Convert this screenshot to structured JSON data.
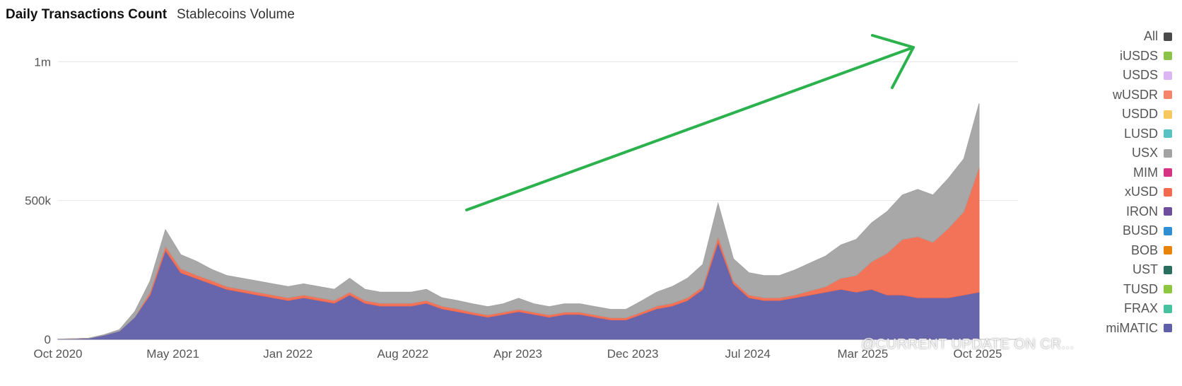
{
  "tabs": [
    {
      "label": "Daily Transactions Count",
      "active": true
    },
    {
      "label": "Stablecoins Volume",
      "active": false
    }
  ],
  "legend": [
    {
      "label": "All",
      "color": "#4a4a4a"
    },
    {
      "label": "iUSDS",
      "color": "#8bc34a"
    },
    {
      "label": "USDS",
      "color": "#dcb6f2"
    },
    {
      "label": "wUSDR",
      "color": "#f4846a"
    },
    {
      "label": "USDD",
      "color": "#f6c85f"
    },
    {
      "label": "LUSD",
      "color": "#59c3c3"
    },
    {
      "label": "USX",
      "color": "#a3a3a3"
    },
    {
      "label": "MIM",
      "color": "#d63384"
    },
    {
      "label": "xUSD",
      "color": "#f26b4f"
    },
    {
      "label": "IRON",
      "color": "#6f4e9c"
    },
    {
      "label": "BUSD",
      "color": "#2f8fd5"
    },
    {
      "label": "BOB",
      "color": "#e8830c"
    },
    {
      "label": "UST",
      "color": "#2a6e5f"
    },
    {
      "label": "TUSD",
      "color": "#8dc63f"
    },
    {
      "label": "FRAX",
      "color": "#48c1a0"
    },
    {
      "label": "miMATIC",
      "color": "#5f5ea8"
    }
  ],
  "watermark": "@CURRENT UPDATE ON CR...",
  "chart_data": {
    "type": "area",
    "stacked": true,
    "title": "Daily Transactions Count",
    "xlabel": "",
    "ylabel": "",
    "ylim": [
      0,
      1100000
    ],
    "y_ticks": [
      {
        "value": 0,
        "label": "0"
      },
      {
        "value": 500000,
        "label": "500k"
      },
      {
        "value": 1000000,
        "label": "1m"
      }
    ],
    "x_ticks": [
      "Oct 2020",
      "May 2021",
      "Jan 2022",
      "Aug 2022",
      "Apr 2023",
      "Dec 2023",
      "Jul 2024",
      "Mar 2025",
      "Oct 2025"
    ],
    "x": [
      "Oct 2020",
      "Nov 2020",
      "Dec 2020",
      "Jan 2021",
      "Feb 2021",
      "Mar 2021",
      "Apr 2021",
      "May 2021",
      "Jun 2021",
      "Jul 2021",
      "Aug 2021",
      "Sep 2021",
      "Oct 2021",
      "Nov 2021",
      "Dec 2021",
      "Jan 2022",
      "Feb 2022",
      "Mar 2022",
      "Apr 2022",
      "May 2022",
      "Jun 2022",
      "Jul 2022",
      "Aug 2022",
      "Sep 2022",
      "Oct 2022",
      "Nov 2022",
      "Dec 2022",
      "Jan 2023",
      "Feb 2023",
      "Mar 2023",
      "Apr 2023",
      "May 2023",
      "Jun 2023",
      "Jul 2023",
      "Aug 2023",
      "Sep 2023",
      "Oct 2023",
      "Nov 2023",
      "Dec 2023",
      "Jan 2024",
      "Feb 2024",
      "Mar 2024",
      "Apr 2024",
      "May 2024",
      "Jun 2024",
      "Jul 2024",
      "Aug 2024",
      "Sep 2024",
      "Oct 2024",
      "Nov 2024",
      "Dec 2024",
      "Jan 2025",
      "Feb 2025",
      "Mar 2025",
      "Apr 2025",
      "May 2025",
      "Jun 2025",
      "Jul 2025",
      "Aug 2025",
      "Sep 2025",
      "Oct 2025"
    ],
    "series": [
      {
        "name": "miMATIC",
        "color": "#5f5ea8",
        "values": [
          1000,
          2000,
          4000,
          15000,
          30000,
          80000,
          160000,
          320000,
          240000,
          220000,
          200000,
          180000,
          170000,
          160000,
          150000,
          140000,
          150000,
          140000,
          130000,
          160000,
          130000,
          120000,
          120000,
          120000,
          130000,
          110000,
          100000,
          90000,
          80000,
          90000,
          100000,
          90000,
          80000,
          90000,
          90000,
          80000,
          70000,
          70000,
          90000,
          110000,
          120000,
          140000,
          180000,
          350000,
          200000,
          150000,
          140000,
          140000,
          150000,
          160000,
          170000,
          180000,
          170000,
          180000,
          160000,
          160000,
          150000,
          150000,
          150000,
          160000,
          170000
        ]
      },
      {
        "name": "xUSD",
        "color": "#f26b4f",
        "values": [
          0,
          0,
          0,
          0,
          0,
          0,
          10000,
          15000,
          15000,
          12000,
          12000,
          10000,
          10000,
          10000,
          10000,
          10000,
          10000,
          10000,
          10000,
          10000,
          10000,
          10000,
          10000,
          10000,
          10000,
          10000,
          10000,
          8000,
          8000,
          8000,
          8000,
          8000,
          8000,
          8000,
          8000,
          8000,
          8000,
          8000,
          8000,
          10000,
          10000,
          10000,
          10000,
          20000,
          10000,
          10000,
          10000,
          10000,
          10000,
          15000,
          20000,
          40000,
          60000,
          100000,
          150000,
          200000,
          220000,
          200000,
          250000,
          300000,
          450000
        ]
      },
      {
        "name": "USX",
        "color": "#a3a3a3",
        "values": [
          0,
          0,
          0,
          2000,
          5000,
          20000,
          40000,
          60000,
          50000,
          50000,
          40000,
          40000,
          40000,
          40000,
          40000,
          40000,
          40000,
          40000,
          40000,
          50000,
          40000,
          40000,
          40000,
          40000,
          40000,
          30000,
          30000,
          30000,
          30000,
          30000,
          40000,
          30000,
          30000,
          30000,
          30000,
          30000,
          30000,
          30000,
          40000,
          50000,
          60000,
          70000,
          80000,
          120000,
          80000,
          80000,
          80000,
          80000,
          90000,
          100000,
          110000,
          120000,
          130000,
          140000,
          150000,
          160000,
          170000,
          170000,
          180000,
          190000,
          230000
        ]
      }
    ]
  }
}
